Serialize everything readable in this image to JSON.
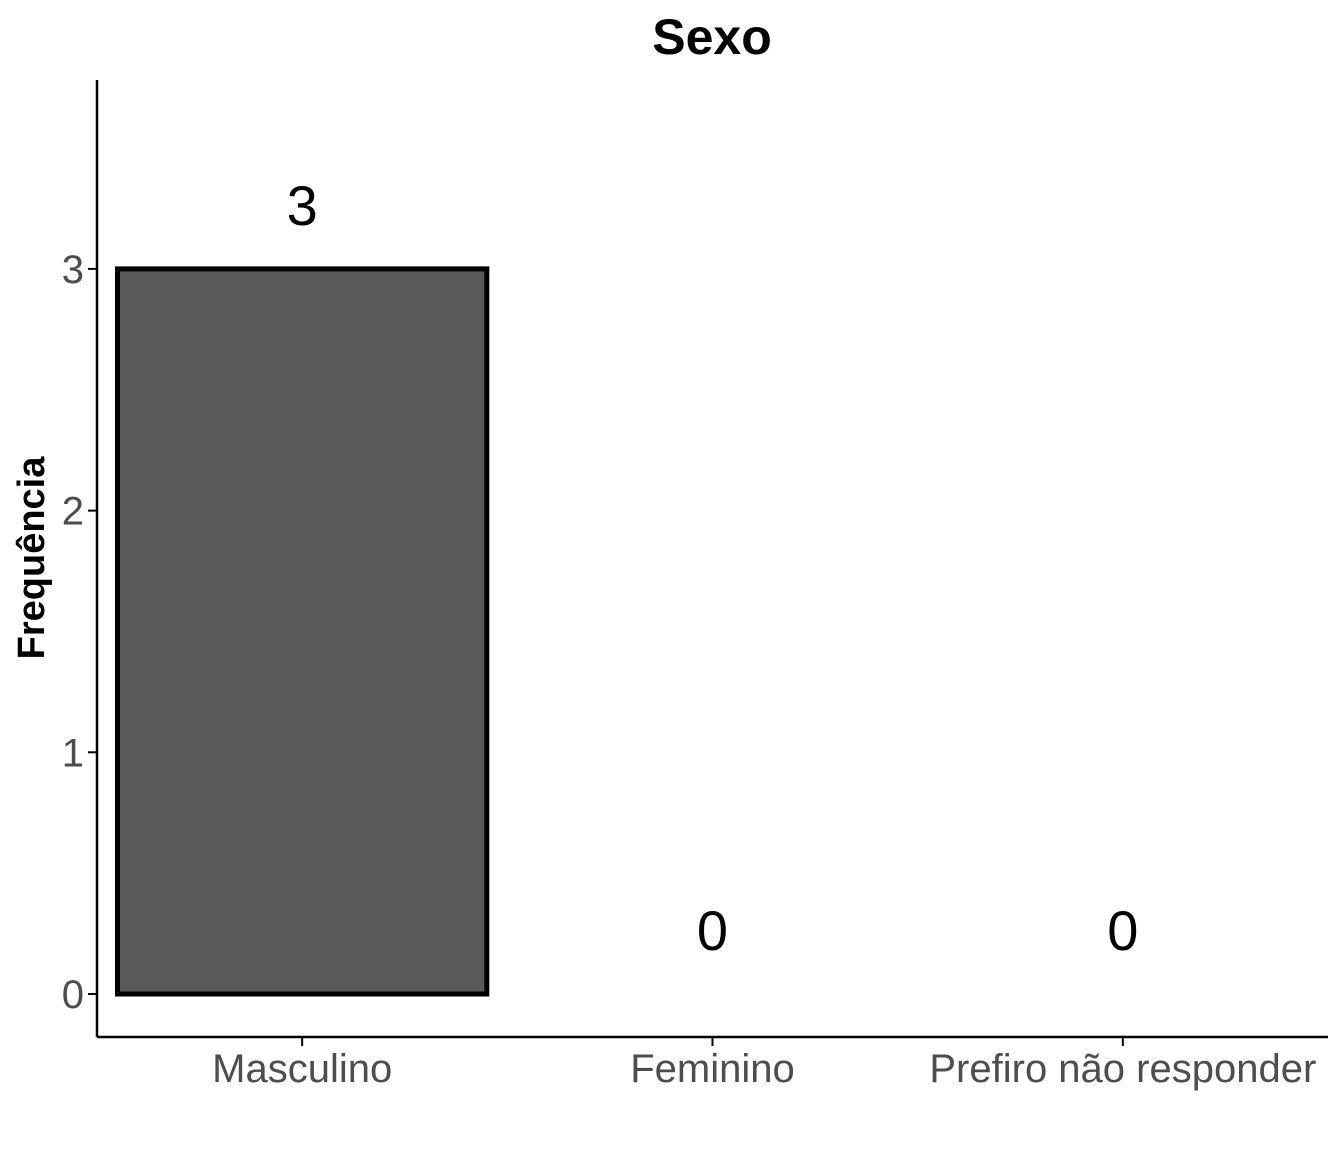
{
  "chart_data": {
    "type": "bar",
    "title": "Sexo",
    "xlabel": "",
    "ylabel": "Frequência",
    "categories": [
      "Masculino",
      "Feminino",
      "Prefiro não responder"
    ],
    "values": [
      3,
      0,
      0
    ],
    "data_labels": [
      "3",
      "0",
      "0"
    ],
    "yticks": [
      0,
      1,
      2,
      3
    ],
    "ylim": [
      -0.18,
      3.8
    ],
    "grid": false,
    "legend": "none",
    "colors": {
      "bar_fill": "#595959",
      "bar_stroke": "#000000",
      "axis": "#000000",
      "tick_text": "#4d4d4d"
    }
  }
}
